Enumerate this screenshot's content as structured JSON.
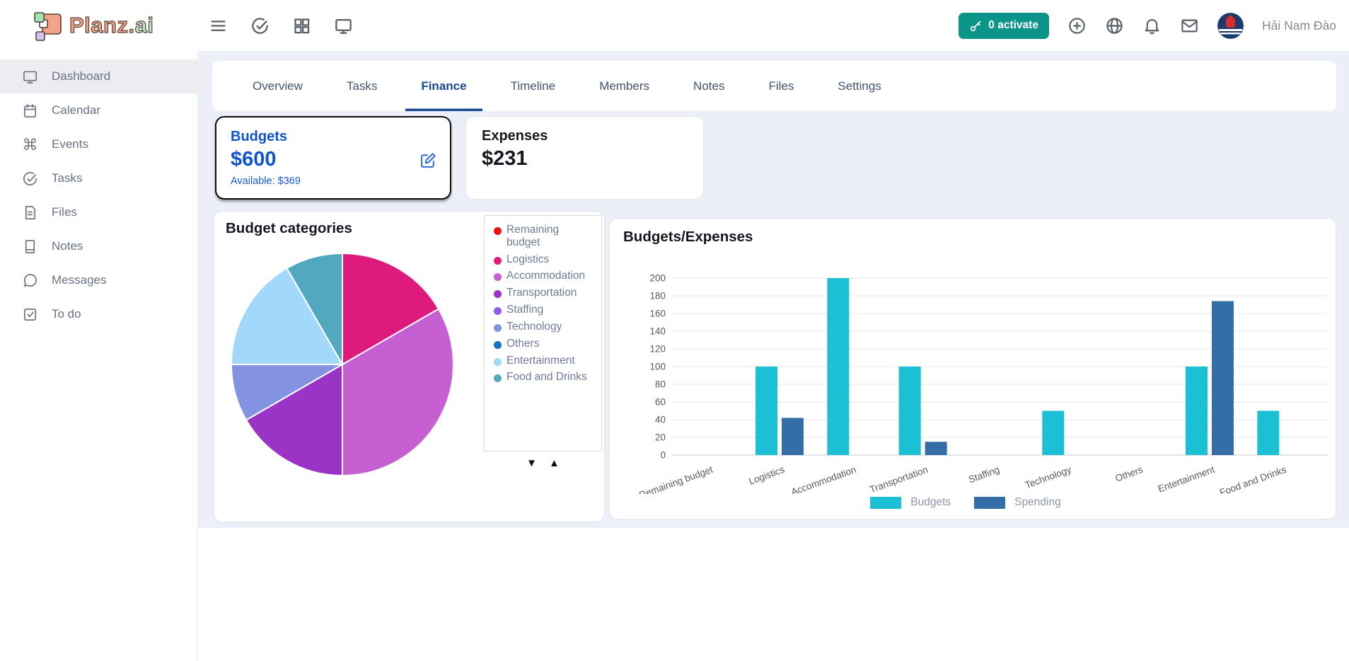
{
  "header": {
    "logo": {
      "text_primary": "Planz.",
      "text_secondary": "ai"
    },
    "activate_button": {
      "label": "0 activate",
      "color": "#0b9488"
    },
    "user": {
      "name": "Hải Nam Đào"
    }
  },
  "sidebar": {
    "items": [
      {
        "label": "Dashboard",
        "icon": "monitor-icon",
        "active": true
      },
      {
        "label": "Calendar",
        "icon": "calendar-icon",
        "active": false
      },
      {
        "label": "Events",
        "icon": "command-icon",
        "active": false
      },
      {
        "label": "Tasks",
        "icon": "check-circle-icon",
        "active": false
      },
      {
        "label": "Files",
        "icon": "file-icon",
        "active": false
      },
      {
        "label": "Notes",
        "icon": "book-icon",
        "active": false
      },
      {
        "label": "Messages",
        "icon": "chat-icon",
        "active": false
      },
      {
        "label": "To do",
        "icon": "check-square-icon",
        "active": false
      }
    ]
  },
  "tabs": {
    "active": "Finance",
    "items": [
      "Overview",
      "Tasks",
      "Finance",
      "Timeline",
      "Members",
      "Notes",
      "Files",
      "Settings"
    ]
  },
  "cards": {
    "budgets": {
      "title": "Budgets",
      "amount": "$600",
      "available": "Available: $369"
    },
    "expenses": {
      "title": "Expenses",
      "amount": "$231"
    }
  },
  "pie_card": {
    "title": "Budget categories"
  },
  "bar_card": {
    "title": "Budgets/Expenses"
  },
  "chart_data": [
    {
      "type": "pie",
      "title": "Budget categories",
      "categories": [
        "Remaining budget",
        "Logistics",
        "Accommodation",
        "Transportation",
        "Staffing",
        "Technology",
        "Others",
        "Entertainment",
        "Food and Drinks"
      ],
      "values": [
        0,
        100,
        200,
        100,
        0,
        50,
        0,
        100,
        50
      ],
      "colors": [
        "#ee1112",
        "#de1b7c",
        "#c55fd2",
        "#9b34c6",
        "#8d5cf0",
        "#8393e2",
        "#0d74c8",
        "#a2d8f9",
        "#52a9bf"
      ],
      "legend_position": "right"
    },
    {
      "type": "bar",
      "title": "Budgets/Expenses",
      "categories": [
        "Remaining budget",
        "Logistics",
        "Accommodation",
        "Transportation",
        "Staffing",
        "Technology",
        "Others",
        "Entertainment",
        "Food and Drinks"
      ],
      "series": [
        {
          "name": "Budgets",
          "color": "#1bc0d4",
          "values": [
            0,
            100,
            200,
            100,
            0,
            50,
            0,
            100,
            50
          ]
        },
        {
          "name": "Spending",
          "color": "#336fa6",
          "values": [
            0,
            42,
            0,
            15,
            0,
            0,
            0,
            174,
            0
          ]
        }
      ],
      "ylim": [
        0,
        200
      ],
      "ytick_step": 20,
      "grid": true,
      "legend_position": "bottom"
    }
  ]
}
